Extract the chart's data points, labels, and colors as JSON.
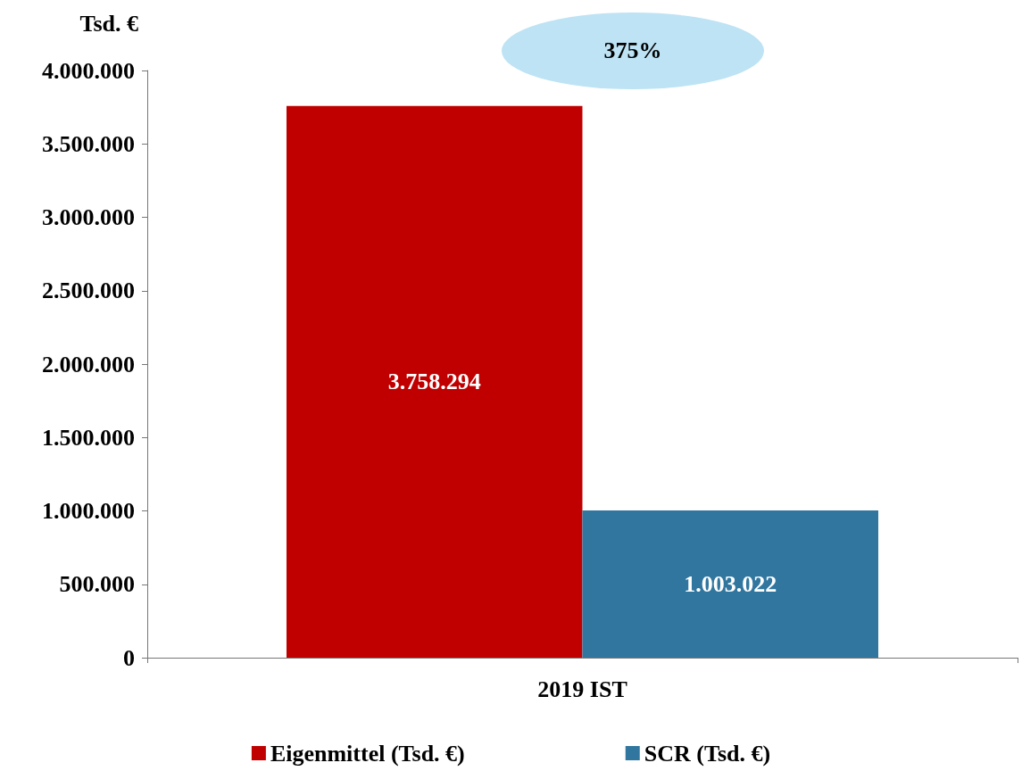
{
  "chart_data": {
    "type": "bar",
    "ylabel": "Tsd. €",
    "categories": [
      "2019 IST"
    ],
    "series": [
      {
        "name": "Eigenmittel (Tsd. €)",
        "color": "#c00000",
        "values": [
          3758294
        ],
        "value_labels": [
          "3.758.294"
        ]
      },
      {
        "name": "SCR (Tsd. €)",
        "color": "#31769f",
        "values": [
          1003022
        ],
        "value_labels": [
          "1.003.022"
        ]
      }
    ],
    "ylim": [
      0,
      4000000
    ],
    "yticks": [
      0,
      {
        "value": 500000,
        "label": "500.000"
      },
      {
        "value": 1000000,
        "label": "1.000.000"
      },
      {
        "value": 1500000,
        "label": "1.500.000"
      },
      {
        "value": 2000000,
        "label": "2.000.000"
      },
      {
        "value": 2500000,
        "label": "2.500.000"
      },
      {
        "value": 3000000,
        "label": "3.000.000"
      },
      {
        "value": 3500000,
        "label": "3.500.000"
      },
      {
        "value": 4000000,
        "label": "4.000.000"
      }
    ],
    "annotations": [
      "375%"
    ],
    "grid": false,
    "legend": "bottom"
  }
}
